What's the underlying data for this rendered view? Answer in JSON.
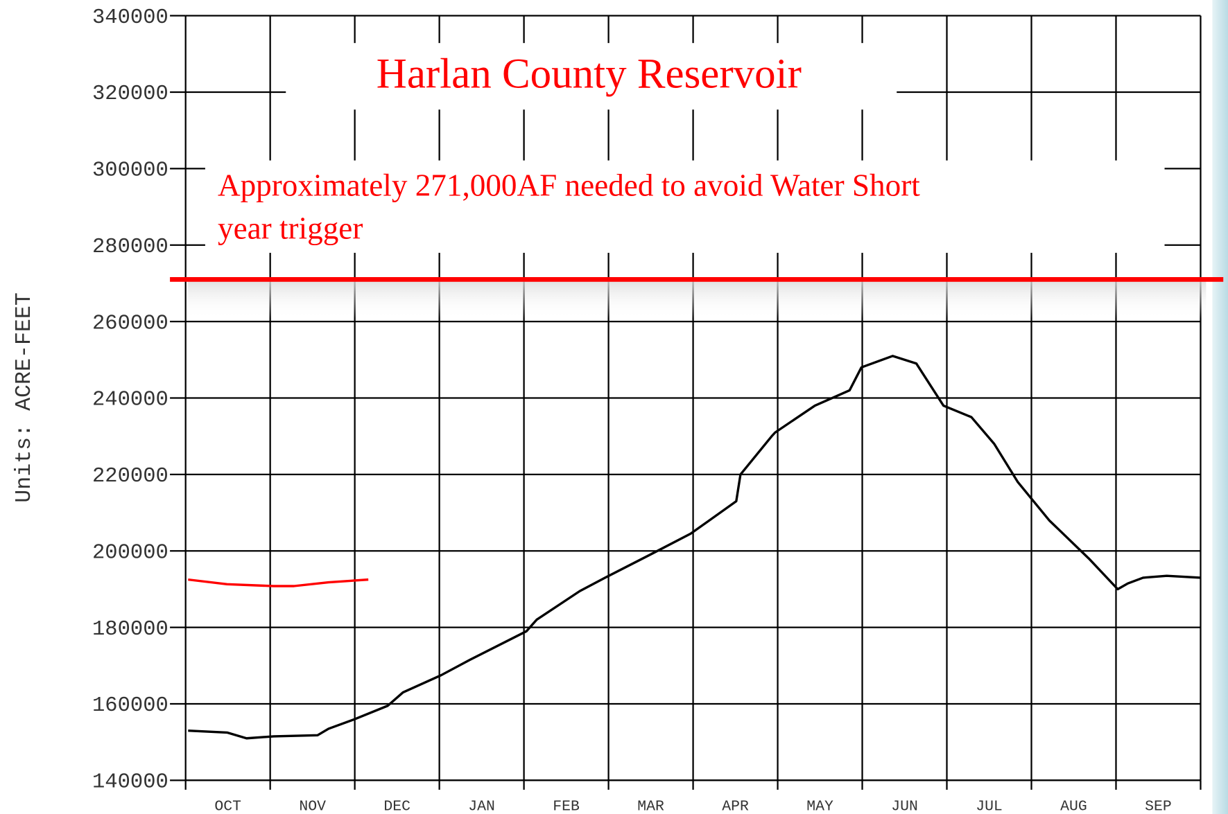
{
  "chart_data": {
    "type": "line",
    "title": "Harlan County Reservoir",
    "annotation": "Approximately 271,000AF needed to avoid Water Short year trigger",
    "y_label": "Units: ACRE-FEET",
    "categories": [
      "OCT",
      "NOV",
      "DEC",
      "JAN",
      "FEB",
      "MAR",
      "APR",
      "MAY",
      "JUN",
      "JUL",
      "AUG",
      "SEP"
    ],
    "xlim": [
      0,
      12
    ],
    "ylim": [
      140000,
      340000
    ],
    "yticks": [
      140000,
      160000,
      180000,
      200000,
      220000,
      240000,
      260000,
      280000,
      300000,
      320000,
      340000
    ],
    "grid": true,
    "threshold": 271000,
    "threshold_color": "#ff0000",
    "series": [
      {
        "color": "#000000",
        "x": [
          0.03,
          0.49,
          0.72,
          1.04,
          1.56,
          1.69,
          2.0,
          2.39,
          2.57,
          3.02,
          3.36,
          4.03,
          4.15,
          4.66,
          4.96,
          5.49,
          5.97,
          6.51,
          6.56,
          6.93,
          6.97,
          7.44,
          7.85,
          7.99,
          8.36,
          8.64,
          8.96,
          9.29,
          9.56,
          9.84,
          10.21,
          10.68,
          11.02,
          11.14,
          11.32,
          11.6,
          12.0
        ],
        "values": [
          153000,
          152500,
          151000,
          151500,
          151800,
          153500,
          156000,
          159500,
          163000,
          167500,
          171500,
          179000,
          182000,
          189500,
          193000,
          199000,
          204500,
          213000,
          220000,
          230000,
          231000,
          238000,
          242000,
          248000,
          251000,
          249000,
          238000,
          235000,
          228000,
          218000,
          208000,
          198000,
          190000,
          191500,
          193000,
          193500,
          193000
        ]
      },
      {
        "color": "#ff0000",
        "x": [
          0.03,
          0.49,
          1.04,
          1.28,
          1.69,
          2.16
        ],
        "values": [
          192500,
          191300,
          190800,
          190800,
          191800,
          192500
        ]
      }
    ]
  }
}
